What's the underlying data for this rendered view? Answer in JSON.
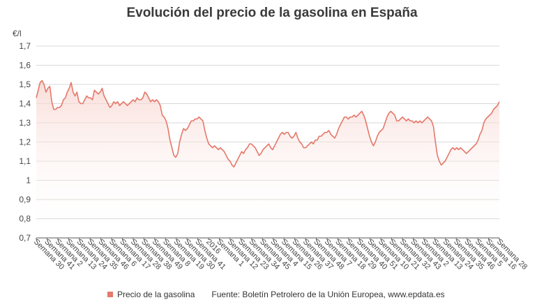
{
  "colors": {
    "line": "#e5796b",
    "area_top": "#f7d2cc",
    "grid": "#d9d9d9",
    "axis": "#555555"
  },
  "chart_data": {
    "type": "area",
    "title": "Evolución del precio de la gasolina en España",
    "ylabel": "€/l",
    "ylim": [
      0.7,
      1.7
    ],
    "y_ticks": [
      "0,7",
      "0,8",
      "0,9",
      "1",
      "1,1",
      "1,2",
      "1,3",
      "1,4",
      "1,5",
      "1,6",
      "1,7"
    ],
    "grid": "horizontal",
    "x_tick_labels": [
      "Semana 30",
      "Semana 41",
      "Semana 2",
      "Semana 13",
      "Semana 24",
      "Semana 35",
      "Semana 46",
      "Semana 6",
      "Semana 17",
      "Semana 28",
      "Semana 38",
      "Semana 49",
      "Semana 8",
      "Semana 19",
      "Semana 30",
      "Semana 41",
      "2016",
      "Semana 1",
      "Semana 12",
      "Semana 23",
      "Semana 34",
      "Semana 45",
      "Semana 4",
      "Semana 15",
      "Semana 26",
      "Semana 37",
      "Semana 48",
      "Semana 7",
      "Semana 18",
      "Semana 29",
      "Semana 40",
      "Semana 51",
      "Semana 10",
      "Semana 21",
      "Semana 32",
      "Semana 43",
      "Semana 2",
      "Semana 13",
      "Semana 24",
      "Semana 35",
      "Semana 46",
      "Semana 5",
      "Semana 16",
      "Semana 28"
    ],
    "series": [
      {
        "name": "Precio de la gasolina",
        "values": [
          1.43,
          1.47,
          1.51,
          1.52,
          1.5,
          1.46,
          1.48,
          1.49,
          1.41,
          1.37,
          1.37,
          1.38,
          1.38,
          1.39,
          1.42,
          1.43,
          1.46,
          1.48,
          1.51,
          1.46,
          1.44,
          1.46,
          1.41,
          1.4,
          1.4,
          1.42,
          1.44,
          1.43,
          1.43,
          1.42,
          1.47,
          1.46,
          1.45,
          1.46,
          1.48,
          1.44,
          1.42,
          1.4,
          1.38,
          1.39,
          1.41,
          1.4,
          1.41,
          1.39,
          1.4,
          1.41,
          1.4,
          1.39,
          1.4,
          1.41,
          1.42,
          1.41,
          1.43,
          1.42,
          1.42,
          1.43,
          1.46,
          1.45,
          1.43,
          1.41,
          1.42,
          1.41,
          1.42,
          1.41,
          1.39,
          1.34,
          1.33,
          1.31,
          1.27,
          1.21,
          1.17,
          1.13,
          1.12,
          1.14,
          1.2,
          1.24,
          1.27,
          1.26,
          1.27,
          1.29,
          1.31,
          1.31,
          1.32,
          1.32,
          1.33,
          1.32,
          1.31,
          1.26,
          1.22,
          1.19,
          1.18,
          1.17,
          1.18,
          1.17,
          1.16,
          1.17,
          1.16,
          1.15,
          1.13,
          1.11,
          1.1,
          1.08,
          1.07,
          1.09,
          1.11,
          1.13,
          1.15,
          1.14,
          1.16,
          1.17,
          1.19,
          1.19,
          1.18,
          1.17,
          1.15,
          1.13,
          1.14,
          1.16,
          1.17,
          1.18,
          1.19,
          1.17,
          1.16,
          1.18,
          1.2,
          1.22,
          1.24,
          1.25,
          1.24,
          1.25,
          1.25,
          1.23,
          1.22,
          1.23,
          1.25,
          1.22,
          1.2,
          1.19,
          1.17,
          1.17,
          1.18,
          1.19,
          1.2,
          1.19,
          1.21,
          1.21,
          1.23,
          1.23,
          1.24,
          1.25,
          1.25,
          1.26,
          1.24,
          1.23,
          1.22,
          1.24,
          1.27,
          1.29,
          1.31,
          1.33,
          1.33,
          1.32,
          1.33,
          1.33,
          1.34,
          1.33,
          1.34,
          1.35,
          1.36,
          1.34,
          1.31,
          1.27,
          1.23,
          1.2,
          1.18,
          1.2,
          1.23,
          1.25,
          1.26,
          1.27,
          1.3,
          1.33,
          1.35,
          1.36,
          1.35,
          1.34,
          1.31,
          1.31,
          1.32,
          1.33,
          1.32,
          1.31,
          1.32,
          1.31,
          1.31,
          1.3,
          1.31,
          1.3,
          1.31,
          1.3,
          1.31,
          1.32,
          1.33,
          1.32,
          1.31,
          1.28,
          1.2,
          1.13,
          1.1,
          1.08,
          1.09,
          1.1,
          1.12,
          1.14,
          1.16,
          1.17,
          1.16,
          1.17,
          1.16,
          1.17,
          1.16,
          1.15,
          1.14,
          1.15,
          1.16,
          1.17,
          1.18,
          1.19,
          1.21,
          1.24,
          1.26,
          1.3,
          1.32,
          1.33,
          1.34,
          1.35,
          1.37,
          1.38,
          1.39,
          1.41
        ]
      }
    ]
  },
  "legend": {
    "series_label": "Precio de la gasolina",
    "source": "Fuente: Boletín Petrolero de la Unión Europea, www.epdata.es"
  }
}
